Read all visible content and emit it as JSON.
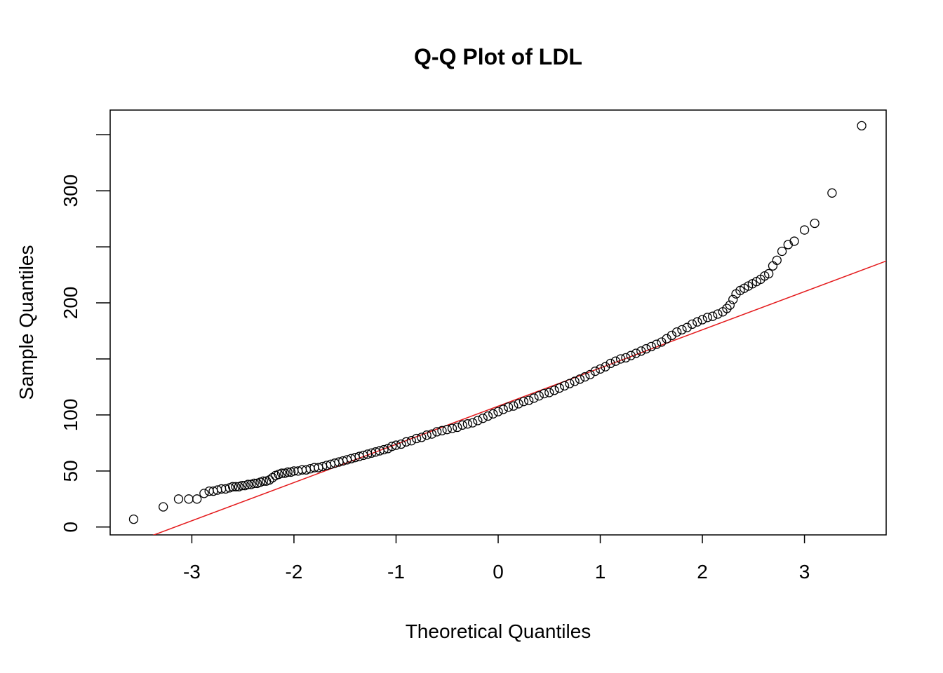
{
  "chart_data": {
    "type": "scatter",
    "title": "Q-Q Plot of LDL",
    "xlabel": "Theoretical Quantiles",
    "ylabel": "Sample Quantiles",
    "xlim": [
      -3.8,
      3.8
    ],
    "ylim": [
      -7,
      372
    ],
    "xticks": [
      -3,
      -2,
      -1,
      0,
      1,
      2,
      3
    ],
    "xtick_labels": [
      "-3",
      "-2",
      "-1",
      "0",
      "1",
      "2",
      "3"
    ],
    "yticks": [
      0,
      50,
      100,
      150,
      200,
      250,
      300,
      350
    ],
    "ytick_labels": [
      "0",
      "50",
      "100",
      "",
      "200",
      "",
      "300",
      ""
    ],
    "grid": false,
    "reference_line": {
      "color": "#e41a1c",
      "points": [
        [
          -3.4,
          -8
        ],
        [
          3.85,
          239
        ]
      ]
    },
    "marker": "open-circle",
    "colors": {
      "points": "#000000",
      "reference_line": "#e41a1c"
    },
    "series": [
      {
        "points": [
          [
            -3.57,
            7
          ],
          [
            -3.28,
            18
          ],
          [
            -3.13,
            25
          ],
          [
            -3.03,
            25
          ],
          [
            -2.95,
            25
          ],
          [
            -2.88,
            30
          ],
          [
            -2.83,
            32
          ],
          [
            -2.79,
            32
          ],
          [
            -2.75,
            33
          ],
          [
            -2.71,
            34
          ],
          [
            -2.67,
            34
          ],
          [
            -2.63,
            35
          ],
          [
            -2.6,
            36
          ],
          [
            -2.57,
            36
          ],
          [
            -2.54,
            36
          ],
          [
            -2.51,
            37
          ],
          [
            -2.48,
            37
          ],
          [
            -2.45,
            38
          ],
          [
            -2.42,
            38
          ],
          [
            -2.39,
            39
          ],
          [
            -2.36,
            39
          ],
          [
            -2.33,
            40
          ],
          [
            -2.3,
            41
          ],
          [
            -2.27,
            41
          ],
          [
            -2.24,
            42
          ],
          [
            -2.21,
            44
          ],
          [
            -2.18,
            46
          ],
          [
            -2.15,
            47
          ],
          [
            -2.12,
            48
          ],
          [
            -2.09,
            48
          ],
          [
            -2.06,
            49
          ],
          [
            -2.03,
            49
          ],
          [
            -2.0,
            50
          ],
          [
            -1.96,
            50
          ],
          [
            -1.92,
            51
          ],
          [
            -1.88,
            51
          ],
          [
            -1.84,
            52
          ],
          [
            -1.8,
            53
          ],
          [
            -1.76,
            53
          ],
          [
            -1.72,
            54
          ],
          [
            -1.68,
            55
          ],
          [
            -1.64,
            56
          ],
          [
            -1.6,
            57
          ],
          [
            -1.56,
            58
          ],
          [
            -1.52,
            59
          ],
          [
            -1.48,
            60
          ],
          [
            -1.44,
            61
          ],
          [
            -1.4,
            62
          ],
          [
            -1.36,
            63
          ],
          [
            -1.32,
            64
          ],
          [
            -1.28,
            65
          ],
          [
            -1.24,
            66
          ],
          [
            -1.2,
            67
          ],
          [
            -1.16,
            68
          ],
          [
            -1.12,
            69
          ],
          [
            -1.08,
            70
          ],
          [
            -1.04,
            72
          ],
          [
            -1.0,
            73
          ],
          [
            -0.95,
            74
          ],
          [
            -0.9,
            76
          ],
          [
            -0.85,
            77
          ],
          [
            -0.8,
            79
          ],
          [
            -0.75,
            80
          ],
          [
            -0.7,
            82
          ],
          [
            -0.65,
            83
          ],
          [
            -0.6,
            85
          ],
          [
            -0.55,
            86
          ],
          [
            -0.5,
            87
          ],
          [
            -0.45,
            88
          ],
          [
            -0.4,
            89
          ],
          [
            -0.35,
            91
          ],
          [
            -0.3,
            92
          ],
          [
            -0.25,
            93
          ],
          [
            -0.2,
            95
          ],
          [
            -0.15,
            97
          ],
          [
            -0.1,
            99
          ],
          [
            -0.05,
            101
          ],
          [
            0.0,
            103
          ],
          [
            0.05,
            105
          ],
          [
            0.1,
            107
          ],
          [
            0.15,
            108
          ],
          [
            0.2,
            110
          ],
          [
            0.25,
            112
          ],
          [
            0.3,
            113
          ],
          [
            0.35,
            115
          ],
          [
            0.4,
            117
          ],
          [
            0.45,
            119
          ],
          [
            0.5,
            120
          ],
          [
            0.55,
            122
          ],
          [
            0.6,
            124
          ],
          [
            0.65,
            126
          ],
          [
            0.7,
            128
          ],
          [
            0.75,
            130
          ],
          [
            0.8,
            132
          ],
          [
            0.85,
            134
          ],
          [
            0.9,
            136
          ],
          [
            0.95,
            139
          ],
          [
            1.0,
            141
          ],
          [
            1.05,
            143
          ],
          [
            1.1,
            146
          ],
          [
            1.15,
            148
          ],
          [
            1.2,
            150
          ],
          [
            1.25,
            151
          ],
          [
            1.3,
            153
          ],
          [
            1.35,
            155
          ],
          [
            1.4,
            157
          ],
          [
            1.45,
            159
          ],
          [
            1.5,
            161
          ],
          [
            1.55,
            163
          ],
          [
            1.6,
            165
          ],
          [
            1.65,
            168
          ],
          [
            1.7,
            171
          ],
          [
            1.75,
            174
          ],
          [
            1.8,
            176
          ],
          [
            1.85,
            178
          ],
          [
            1.9,
            181
          ],
          [
            1.95,
            183
          ],
          [
            2.0,
            185
          ],
          [
            2.05,
            187
          ],
          [
            2.1,
            188
          ],
          [
            2.15,
            190
          ],
          [
            2.2,
            192
          ],
          [
            2.24,
            195
          ],
          [
            2.27,
            198
          ],
          [
            2.3,
            203
          ],
          [
            2.33,
            208
          ],
          [
            2.37,
            211
          ],
          [
            2.41,
            213
          ],
          [
            2.45,
            215
          ],
          [
            2.49,
            217
          ],
          [
            2.53,
            219
          ],
          [
            2.57,
            221
          ],
          [
            2.61,
            224
          ],
          [
            2.65,
            226
          ],
          [
            2.69,
            233
          ],
          [
            2.73,
            238
          ],
          [
            2.78,
            246
          ],
          [
            2.84,
            252
          ],
          [
            2.9,
            255
          ],
          [
            3.0,
            265
          ],
          [
            3.1,
            271
          ],
          [
            3.27,
            298
          ],
          [
            3.56,
            358
          ]
        ]
      }
    ]
  }
}
